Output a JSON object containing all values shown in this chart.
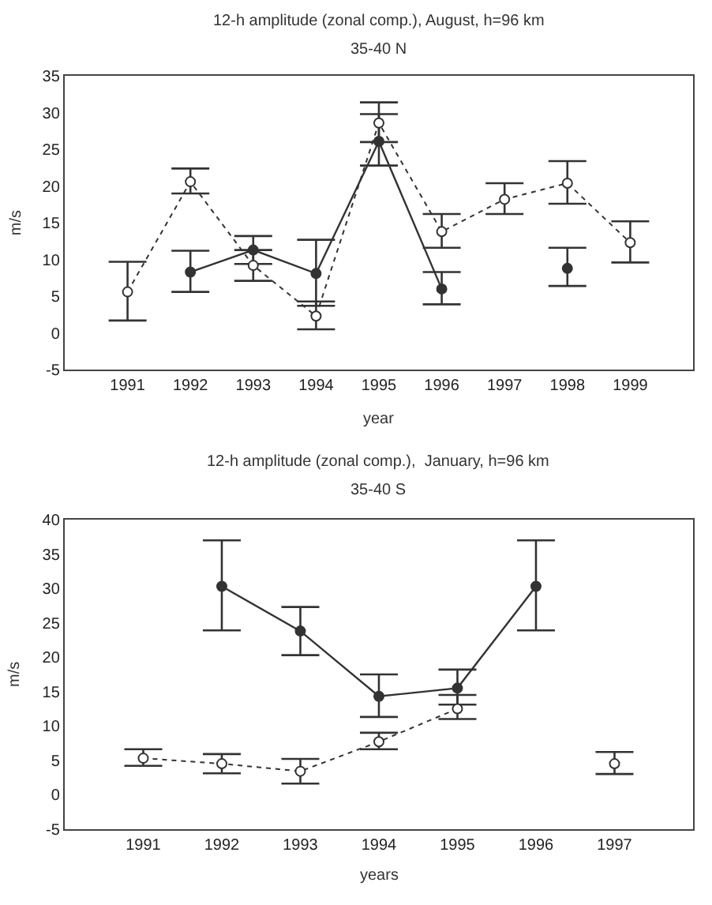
{
  "chart_data": [
    {
      "type": "line",
      "title": "12-h amplitude (zonal comp.), August, h=96 km",
      "subtitle": "35-40 N",
      "xlabel": "year",
      "ylabel": "m/s",
      "xlim": [
        1990,
        2000
      ],
      "xticks": [
        1991,
        1992,
        1993,
        1994,
        1995,
        1996,
        1997,
        1998,
        1999
      ],
      "ylim": [
        -5,
        35
      ],
      "yticks": [
        -5,
        0,
        5,
        10,
        15,
        20,
        25,
        30,
        35
      ],
      "series": [
        {
          "color": "#333333",
          "line_style": "solid",
          "marker": "circle",
          "x": [
            1992,
            1993,
            1994,
            1995,
            1996,
            1997,
            1998
          ],
          "values": [
            8.3,
            11.3,
            8.1,
            26.1,
            6.0,
            null,
            8.8
          ],
          "errors": [
            [
              5.6,
              11.2
            ],
            [
              9.4,
              13.2
            ],
            [
              3.7,
              12.7
            ],
            [
              22.8,
              29.8
            ],
            [
              3.9,
              8.3
            ],
            null,
            [
              6.4,
              11.6
            ]
          ]
        },
        {
          "color": "#333333",
          "line_style": "dotted",
          "marker": "circle",
          "colors": [
            "#ffffff",
            "#ffffff",
            "#ffffff",
            "#ffffff",
            "#ffffff",
            "#ffffff",
            "#ffffff",
            "#ffffff",
            "#ffffff"
          ],
          "x": [
            1991,
            1992,
            1993,
            1994,
            1995,
            1996,
            1997,
            1998,
            1999
          ],
          "values": [
            5.6,
            20.6,
            9.2,
            2.3,
            28.6,
            13.8,
            18.2,
            20.4,
            12.3
          ],
          "errors": [
            [
              1.7,
              9.7
            ],
            [
              19.0,
              22.4
            ],
            [
              7.1,
              11.3
            ],
            [
              0.5,
              4.3
            ],
            [
              26.0,
              31.4
            ],
            [
              11.6,
              16.2
            ],
            [
              16.2,
              20.4
            ],
            [
              17.6,
              23.4
            ],
            [
              9.6,
              15.2
            ]
          ]
        }
      ]
    },
    {
      "type": "line",
      "title": "12-h amplitude (zonal comp.),  January, h=96 km",
      "subtitle": "35-40 S",
      "xlabel": "years",
      "ylabel": "m/s",
      "xlim": [
        1990,
        1998
      ],
      "xticks": [
        1991,
        1992,
        1993,
        1994,
        1995,
        1996,
        1997
      ],
      "ylim": [
        -5,
        40
      ],
      "yticks": [
        -5,
        0,
        5,
        10,
        15,
        20,
        25,
        30,
        35,
        40
      ],
      "series": [
        {
          "color": "#333333",
          "line_style": "solid",
          "marker": "circle",
          "x": [
            1992,
            1993,
            1994,
            1995,
            1996
          ],
          "values": [
            30.3,
            23.8,
            14.3,
            15.5,
            30.3
          ],
          "errors": [
            [
              23.9,
              37.0
            ],
            [
              20.3,
              27.3
            ],
            [
              11.3,
              17.5
            ],
            [
              13.1,
              18.2
            ],
            [
              23.9,
              37.0
            ]
          ]
        },
        {
          "color": "#333333",
          "line_style": "dotted",
          "marker": "circle",
          "colors": [
            "#ffffff",
            "#ffffff",
            "#ffffff",
            "#ffffff",
            "#ffffff",
            "#ffffff",
            "#ffffff"
          ],
          "x": [
            1991,
            1992,
            1993,
            1994,
            1995,
            1996,
            1997
          ],
          "values": [
            5.3,
            4.5,
            3.4,
            7.7,
            12.5,
            null,
            4.5
          ],
          "errors": [
            [
              4.2,
              6.6
            ],
            [
              3.1,
              5.9
            ],
            [
              1.6,
              5.2
            ],
            [
              6.6,
              9.0
            ],
            [
              11.0,
              14.5
            ],
            null,
            [
              3.0,
              6.2
            ]
          ]
        }
      ]
    }
  ]
}
